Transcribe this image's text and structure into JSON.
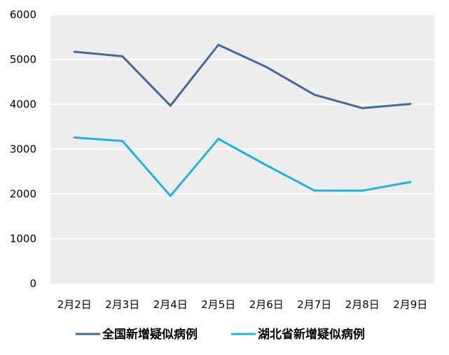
{
  "chart_data": {
    "type": "line",
    "categories": [
      "2月2日",
      "2月3日",
      "2月4日",
      "2月5日",
      "2月6日",
      "2月7日",
      "2月8日",
      "2月9日"
    ],
    "series": [
      {
        "name": "全国新增疑似病例",
        "values": [
          5173,
          5072,
          3971,
          5328,
          4833,
          4214,
          3916,
          4008
        ],
        "color": "#41699E"
      },
      {
        "name": "湖北省新增疑似病例",
        "values": [
          3260,
          3182,
          1957,
          3230,
          2641,
          2077,
          2073,
          2265
        ],
        "color": "#1CB4E8"
      }
    ],
    "title": "",
    "xlabel": "",
    "ylabel": "",
    "ylim": [
      0,
      6000
    ],
    "yticks": [
      "0",
      "1000",
      "2000",
      "3000",
      "4000",
      "5000",
      "6000"
    ],
    "grid": true,
    "legend_position": "bottom",
    "plot_background": "#EDEDED",
    "grid_color": "#FFFFFF"
  }
}
